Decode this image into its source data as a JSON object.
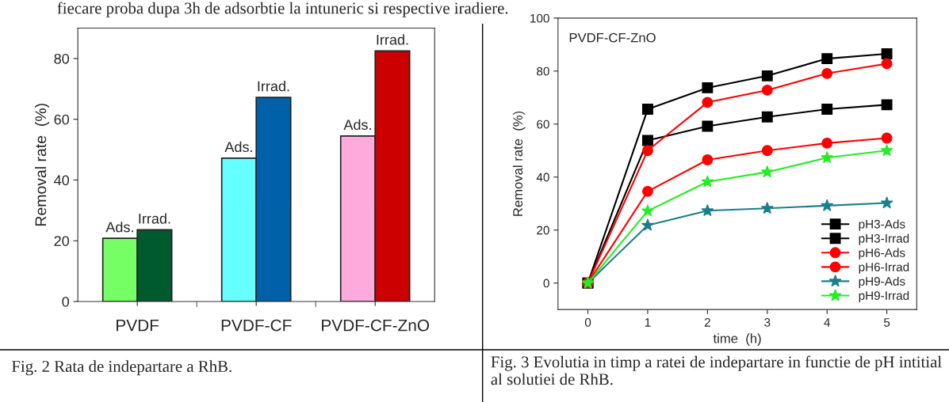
{
  "chart_data": [
    {
      "type": "bar",
      "ylabel": "Removal rate  (%)",
      "categories": [
        "PVDF",
        "PVDF-CF",
        "PVDF-CF-ZnO"
      ],
      "ylim": [
        0,
        90
      ],
      "yticks": [
        0,
        20,
        40,
        60,
        80
      ],
      "grid": false,
      "series": [
        {
          "name": "Ads.",
          "colors": [
            "#77ff66",
            "#66ffff",
            "#ffaadd"
          ],
          "values": [
            20.8,
            47.2,
            54.5
          ]
        },
        {
          "name": "Irrad.",
          "colors": [
            "#005a30",
            "#0060a8",
            "#cc0000"
          ],
          "values": [
            23.6,
            67.2,
            82.5
          ]
        }
      ],
      "annotations": [
        "fiecare proba dupa 3h de adsorbtie la intuneric si respective iradiere.",
        "Fig. 2 Rata de indepartare a RhB."
      ]
    },
    {
      "type": "line",
      "xlabel": "time  (h)",
      "ylabel": "Removal rate  (%)",
      "xlim": [
        -0.5,
        5.5
      ],
      "xticks": [
        0,
        1,
        2,
        3,
        4,
        5
      ],
      "ylim": [
        -10,
        100
      ],
      "yticks": [
        0,
        20,
        40,
        60,
        80,
        100
      ],
      "grid": false,
      "legend": "bottom right",
      "line_style": "solid",
      "x": [
        0,
        1,
        2,
        3,
        4,
        5
      ],
      "series": [
        {
          "name": "pH3-Ads",
          "color": "#000000",
          "marker": "square",
          "values": [
            0,
            53.8,
            59.2,
            62.7,
            65.6,
            67.3
          ]
        },
        {
          "name": "pH3-Irrad",
          "color": "#000000",
          "marker": "square",
          "values": [
            0,
            65.6,
            73.7,
            78.2,
            84.7,
            86.5
          ]
        },
        {
          "name": "pH6-Ads",
          "color": "#ff0000",
          "marker": "circle",
          "values": [
            0,
            34.6,
            46.5,
            50.0,
            52.8,
            54.7
          ]
        },
        {
          "name": "pH6-Irrad",
          "color": "#ff0000",
          "marker": "circle",
          "values": [
            0,
            50.0,
            68.2,
            72.8,
            79.1,
            82.8
          ]
        },
        {
          "name": "pH9-Ads",
          "color": "#1a7f8a",
          "marker": "star",
          "values": [
            0,
            21.8,
            27.3,
            28.2,
            29.2,
            30.2
          ]
        },
        {
          "name": "pH9-Irrad",
          "color": "#22ee22",
          "marker": "star",
          "values": [
            0,
            27.2,
            38.2,
            41.9,
            47.3,
            50.0
          ]
        }
      ],
      "annotations": [
        "PVDF-CF-ZnO",
        "Fig. 3 Evolutia in timp a ratei de indepartare in functie de pH intitial al solutiei de RhB."
      ]
    }
  ]
}
